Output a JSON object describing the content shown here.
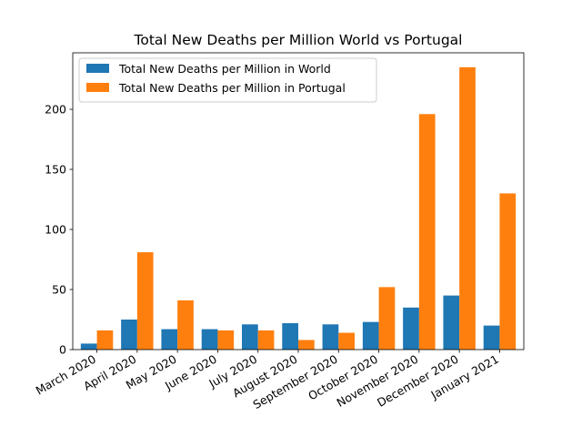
{
  "chart_data": {
    "type": "bar",
    "title": "Total New Deaths per Million World vs Portugal",
    "xlabel": "",
    "ylabel": "",
    "categories": [
      "March 2020",
      "April 2020",
      "May 2020",
      "June 2020",
      "July 2020",
      "August 2020",
      "September 2020",
      "October 2020",
      "November 2020",
      "December 2020",
      "January 2021"
    ],
    "series": [
      {
        "name": "Total New Deaths per Million in World",
        "color": "#1f77b4",
        "values": [
          5,
          25,
          17,
          17,
          21,
          22,
          21,
          23,
          35,
          45,
          20
        ]
      },
      {
        "name": "Total New Deaths per Million in Portugal",
        "color": "#ff7f0e",
        "values": [
          16,
          81,
          41,
          16,
          16,
          8,
          14,
          52,
          196,
          235,
          130
        ]
      }
    ],
    "ylim": [
      0,
      247
    ],
    "yticks": [
      0,
      50,
      100,
      150,
      200
    ],
    "legend_position": "top-left",
    "grid": false
  }
}
